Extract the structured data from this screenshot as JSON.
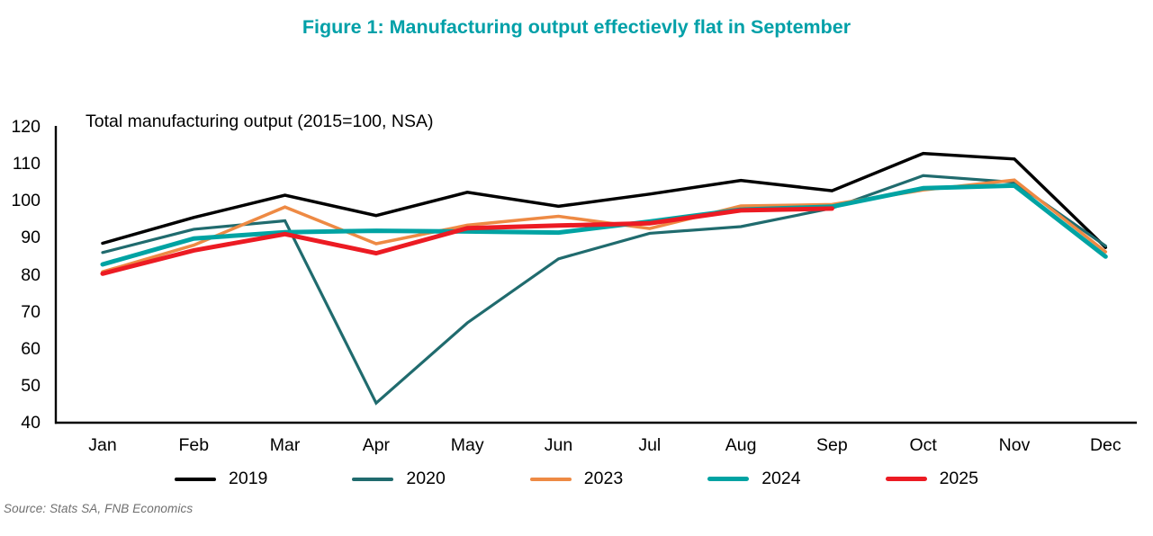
{
  "chart_data": {
    "type": "line",
    "title": "Figure 1: Manufacturing output effectievly flat in September",
    "inner_title": "Total manufacturing output (2015=100, NSA)",
    "source": "Source: Stats SA, FNB Economics",
    "categories": [
      "Jan",
      "Feb",
      "Mar",
      "Apr",
      "May",
      "Jun",
      "Jul",
      "Aug",
      "Sep",
      "Oct",
      "Nov",
      "Dec"
    ],
    "y_ticks": [
      40,
      50,
      60,
      70,
      80,
      90,
      100,
      110,
      120
    ],
    "ylim": [
      40,
      120
    ],
    "grid": false,
    "legend_position": "bottom",
    "colors": {
      "title": "#00A0A8",
      "axis": "#000000"
    },
    "series": [
      {
        "name": "2019",
        "color": "#000000",
        "width": 3.5,
        "values": [
          88.5,
          95.5,
          101.5,
          96.0,
          102.3,
          98.5,
          101.8,
          105.5,
          102.7,
          112.8,
          111.3,
          87.4
        ]
      },
      {
        "name": "2020",
        "color": "#206B6E",
        "width": 3.2,
        "values": [
          86.0,
          92.3,
          94.6,
          45.3,
          67.0,
          84.3,
          91.2,
          93.0,
          98.0,
          106.8,
          105.0,
          87.8
        ]
      },
      {
        "name": "2023",
        "color": "#EE8A44",
        "width": 3.5,
        "values": [
          80.8,
          88.0,
          98.3,
          88.4,
          93.4,
          95.8,
          92.5,
          98.6,
          99.0,
          102.9,
          105.6,
          86.2
        ]
      },
      {
        "name": "2024",
        "color": "#00A3A3",
        "width": 5,
        "values": [
          82.8,
          89.8,
          91.5,
          91.9,
          91.7,
          91.4,
          94.4,
          97.6,
          98.4,
          103.4,
          104.1,
          84.9
        ]
      },
      {
        "name": "2025",
        "color": "#EC1B23",
        "width": 5,
        "values": [
          80.3,
          86.6,
          91.0,
          85.8,
          92.6,
          93.3,
          93.9,
          97.4,
          97.9,
          null,
          null,
          null
        ]
      }
    ]
  }
}
